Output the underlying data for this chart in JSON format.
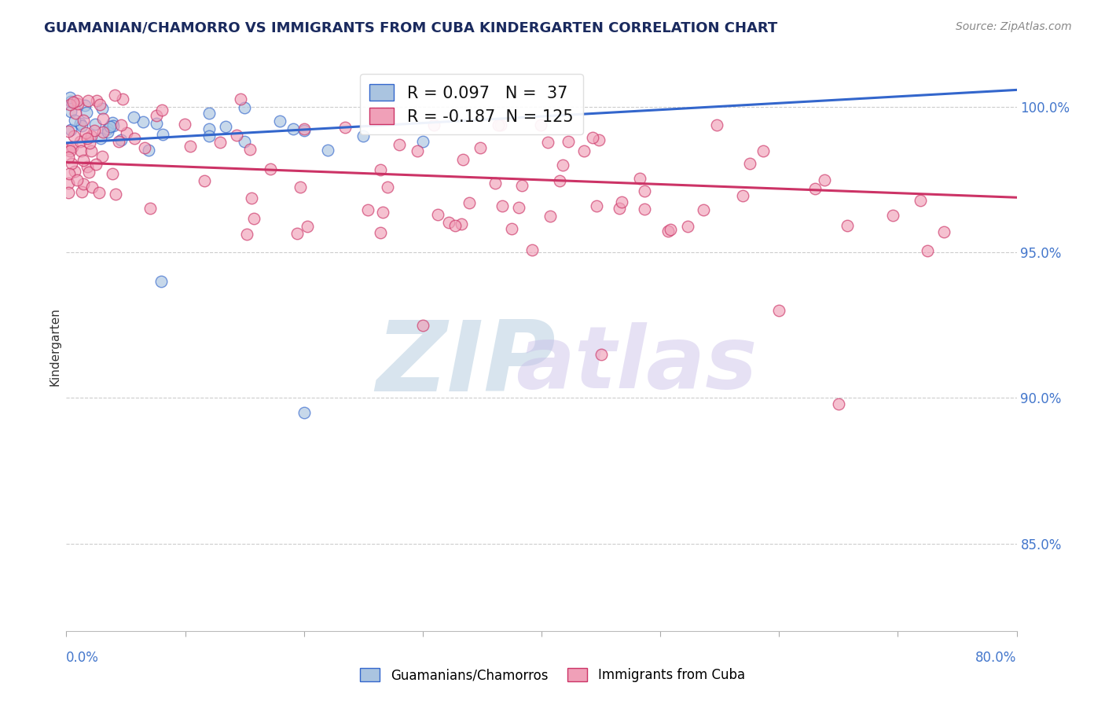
{
  "title": "GUAMANIAN/CHAMORRO VS IMMIGRANTS FROM CUBA KINDERGARTEN CORRELATION CHART",
  "source": "Source: ZipAtlas.com",
  "ylabel": "Kindergarten",
  "xlim": [
    0.0,
    80.0
  ],
  "ylim": [
    82.0,
    101.5
  ],
  "yticks": [
    85.0,
    90.0,
    95.0,
    100.0
  ],
  "ytick_labels": [
    "85.0%",
    "90.0%",
    "95.0%",
    "100.0%"
  ],
  "blue_R": 0.097,
  "blue_N": 37,
  "pink_R": -0.187,
  "pink_N": 125,
  "blue_color": "#aac4e0",
  "pink_color": "#f0a0b8",
  "blue_line_color": "#3366cc",
  "pink_line_color": "#cc3366",
  "watermark_zip_color": "#c0d4e8",
  "watermark_atlas_color": "#d0c8e8"
}
